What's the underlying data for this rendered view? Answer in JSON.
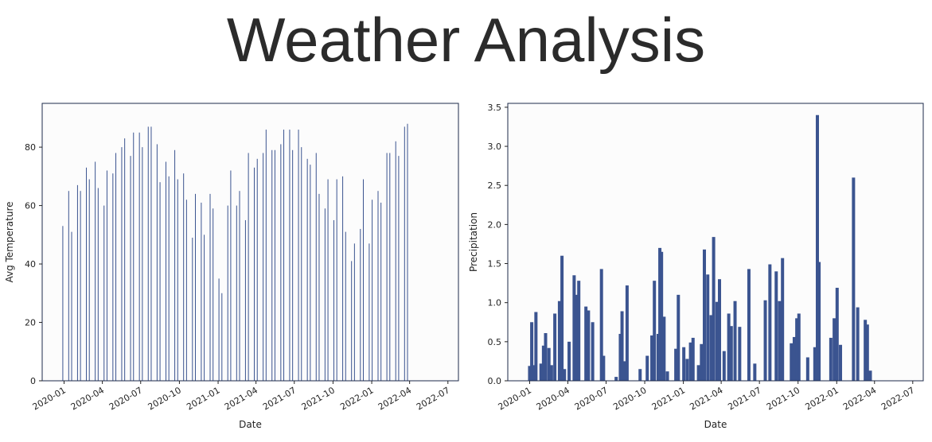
{
  "title": "Weather Analysis",
  "colors": {
    "bar": "#3b5490",
    "frame": "#1d2a4a",
    "plot_bg": "#fcfcfc"
  },
  "chart_data": [
    {
      "type": "bar",
      "xlabel": "Date",
      "ylabel": "Avg Temperature",
      "ylim": [
        0,
        95
      ],
      "xlim": [
        "2019-11-10",
        "2022-07-26"
      ],
      "yticks": [
        0,
        20,
        40,
        60,
        80
      ],
      "xticks": [
        "2020-01",
        "2020-04",
        "2020-07",
        "2020-10",
        "2021-01",
        "2021-04",
        "2021-07",
        "2021-10",
        "2022-01",
        "2022-04",
        "2022-07"
      ],
      "grid": false,
      "bars": [
        {
          "x": "2019-12-29",
          "y": 53
        },
        {
          "x": "2020-01-12",
          "y": 65
        },
        {
          "x": "2020-01-19",
          "y": 51
        },
        {
          "x": "2020-02-02",
          "y": 67
        },
        {
          "x": "2020-02-09",
          "y": 65
        },
        {
          "x": "2020-02-23",
          "y": 73
        },
        {
          "x": "2020-03-01",
          "y": 69
        },
        {
          "x": "2020-03-15",
          "y": 75
        },
        {
          "x": "2020-03-22",
          "y": 66
        },
        {
          "x": "2020-04-05",
          "y": 60
        },
        {
          "x": "2020-04-12",
          "y": 72
        },
        {
          "x": "2020-04-26",
          "y": 71
        },
        {
          "x": "2020-05-03",
          "y": 78
        },
        {
          "x": "2020-05-17",
          "y": 80
        },
        {
          "x": "2020-05-24",
          "y": 83
        },
        {
          "x": "2020-06-07",
          "y": 77
        },
        {
          "x": "2020-06-14",
          "y": 85
        },
        {
          "x": "2020-06-28",
          "y": 85
        },
        {
          "x": "2020-07-05",
          "y": 80
        },
        {
          "x": "2020-07-19",
          "y": 87
        },
        {
          "x": "2020-07-26",
          "y": 87
        },
        {
          "x": "2020-08-09",
          "y": 81
        },
        {
          "x": "2020-08-16",
          "y": 68
        },
        {
          "x": "2020-08-30",
          "y": 75
        },
        {
          "x": "2020-09-06",
          "y": 70
        },
        {
          "x": "2020-09-20",
          "y": 79
        },
        {
          "x": "2020-09-27",
          "y": 69
        },
        {
          "x": "2020-10-11",
          "y": 71
        },
        {
          "x": "2020-10-18",
          "y": 62
        },
        {
          "x": "2020-11-01",
          "y": 49
        },
        {
          "x": "2020-11-08",
          "y": 64
        },
        {
          "x": "2020-11-22",
          "y": 61
        },
        {
          "x": "2020-11-29",
          "y": 50
        },
        {
          "x": "2020-12-13",
          "y": 64
        },
        {
          "x": "2020-12-20",
          "y": 59
        },
        {
          "x": "2021-01-03",
          "y": 35
        },
        {
          "x": "2021-01-10",
          "y": 30
        },
        {
          "x": "2021-01-24",
          "y": 60
        },
        {
          "x": "2021-01-31",
          "y": 72
        },
        {
          "x": "2021-02-14",
          "y": 60
        },
        {
          "x": "2021-02-21",
          "y": 65
        },
        {
          "x": "2021-03-07",
          "y": 55
        },
        {
          "x": "2021-03-14",
          "y": 78
        },
        {
          "x": "2021-03-28",
          "y": 73
        },
        {
          "x": "2021-04-04",
          "y": 76
        },
        {
          "x": "2021-04-18",
          "y": 78
        },
        {
          "x": "2021-04-25",
          "y": 86
        },
        {
          "x": "2021-05-09",
          "y": 79
        },
        {
          "x": "2021-05-16",
          "y": 79
        },
        {
          "x": "2021-05-30",
          "y": 81
        },
        {
          "x": "2021-06-06",
          "y": 86
        },
        {
          "x": "2021-06-20",
          "y": 86
        },
        {
          "x": "2021-06-27",
          "y": 79
        },
        {
          "x": "2021-07-11",
          "y": 86
        },
        {
          "x": "2021-07-18",
          "y": 80
        },
        {
          "x": "2021-08-01",
          "y": 76
        },
        {
          "x": "2021-08-08",
          "y": 74
        },
        {
          "x": "2021-08-22",
          "y": 78
        },
        {
          "x": "2021-08-29",
          "y": 64
        },
        {
          "x": "2021-09-12",
          "y": 59
        },
        {
          "x": "2021-09-19",
          "y": 69
        },
        {
          "x": "2021-10-03",
          "y": 55
        },
        {
          "x": "2021-10-10",
          "y": 69
        },
        {
          "x": "2021-10-24",
          "y": 70
        },
        {
          "x": "2021-10-31",
          "y": 51
        },
        {
          "x": "2021-11-14",
          "y": 41
        },
        {
          "x": "2021-11-21",
          "y": 47
        },
        {
          "x": "2021-12-05",
          "y": 52
        },
        {
          "x": "2021-12-12",
          "y": 69
        },
        {
          "x": "2021-12-26",
          "y": 47
        },
        {
          "x": "2022-01-02",
          "y": 62
        },
        {
          "x": "2022-01-16",
          "y": 65
        },
        {
          "x": "2022-01-23",
          "y": 61
        },
        {
          "x": "2022-02-06",
          "y": 78
        },
        {
          "x": "2022-02-13",
          "y": 78
        },
        {
          "x": "2022-02-27",
          "y": 82
        },
        {
          "x": "2022-03-06",
          "y": 77
        },
        {
          "x": "2022-03-20",
          "y": 87
        },
        {
          "x": "2022-03-27",
          "y": 88
        }
      ]
    },
    {
      "type": "bar",
      "xlabel": "Date",
      "ylabel": "Precipitation",
      "ylim": [
        0,
        3.55
      ],
      "xlim": [
        "2019-11-10",
        "2022-07-26"
      ],
      "yticks": [
        0.0,
        0.5,
        1.0,
        1.5,
        2.0,
        2.5,
        3.0,
        3.5
      ],
      "xticks": [
        "2020-01",
        "2020-04",
        "2020-07",
        "2020-10",
        "2021-01",
        "2021-04",
        "2021-07",
        "2021-10",
        "2022-01",
        "2022-04",
        "2022-07"
      ],
      "grid": false,
      "bars": [
        {
          "x": "2020-01-01",
          "y": 0.19
        },
        {
          "x": "2020-01-06",
          "y": 0.75
        },
        {
          "x": "2020-01-10",
          "y": 0.2
        },
        {
          "x": "2020-01-16",
          "y": 0.88
        },
        {
          "x": "2020-01-28",
          "y": 0.22
        },
        {
          "x": "2020-02-03",
          "y": 0.45
        },
        {
          "x": "2020-02-08",
          "y": 0.61
        },
        {
          "x": "2020-02-16",
          "y": 0.42
        },
        {
          "x": "2020-02-22",
          "y": 0.2
        },
        {
          "x": "2020-03-01",
          "y": 0.86
        },
        {
          "x": "2020-03-12",
          "y": 1.02
        },
        {
          "x": "2020-03-18",
          "y": 1.6
        },
        {
          "x": "2020-03-24",
          "y": 0.15
        },
        {
          "x": "2020-04-04",
          "y": 0.5
        },
        {
          "x": "2020-04-16",
          "y": 1.35
        },
        {
          "x": "2020-04-21",
          "y": 1.1
        },
        {
          "x": "2020-04-27",
          "y": 1.28
        },
        {
          "x": "2020-05-14",
          "y": 0.95
        },
        {
          "x": "2020-05-20",
          "y": 0.9
        },
        {
          "x": "2020-05-30",
          "y": 0.75
        },
        {
          "x": "2020-06-20",
          "y": 1.43
        },
        {
          "x": "2020-06-25",
          "y": 0.32
        },
        {
          "x": "2020-07-25",
          "y": 0.05
        },
        {
          "x": "2020-08-04",
          "y": 0.6
        },
        {
          "x": "2020-08-08",
          "y": 0.89
        },
        {
          "x": "2020-08-14",
          "y": 0.25
        },
        {
          "x": "2020-08-20",
          "y": 1.22
        },
        {
          "x": "2020-09-20",
          "y": 0.15
        },
        {
          "x": "2020-10-07",
          "y": 0.32
        },
        {
          "x": "2020-10-18",
          "y": 0.58
        },
        {
          "x": "2020-10-24",
          "y": 1.28
        },
        {
          "x": "2020-11-02",
          "y": 0.6
        },
        {
          "x": "2020-11-06",
          "y": 1.7
        },
        {
          "x": "2020-11-10",
          "y": 1.65
        },
        {
          "x": "2020-11-16",
          "y": 0.82
        },
        {
          "x": "2020-11-24",
          "y": 0.12
        },
        {
          "x": "2020-12-14",
          "y": 0.41
        },
        {
          "x": "2020-12-20",
          "y": 1.1
        },
        {
          "x": "2021-01-02",
          "y": 0.43
        },
        {
          "x": "2021-01-10",
          "y": 0.28
        },
        {
          "x": "2021-01-18",
          "y": 0.49
        },
        {
          "x": "2021-01-24",
          "y": 0.55
        },
        {
          "x": "2021-02-06",
          "y": 0.2
        },
        {
          "x": "2021-02-13",
          "y": 0.47
        },
        {
          "x": "2021-02-20",
          "y": 1.68
        },
        {
          "x": "2021-02-28",
          "y": 1.36
        },
        {
          "x": "2021-03-08",
          "y": 0.84
        },
        {
          "x": "2021-03-14",
          "y": 1.84
        },
        {
          "x": "2021-03-22",
          "y": 1.01
        },
        {
          "x": "2021-03-28",
          "y": 1.3
        },
        {
          "x": "2021-04-08",
          "y": 0.38
        },
        {
          "x": "2021-04-19",
          "y": 0.86
        },
        {
          "x": "2021-04-25",
          "y": 0.7
        },
        {
          "x": "2021-05-04",
          "y": 1.02
        },
        {
          "x": "2021-05-15",
          "y": 0.69
        },
        {
          "x": "2021-06-06",
          "y": 1.43
        },
        {
          "x": "2021-06-20",
          "y": 0.22
        },
        {
          "x": "2021-07-15",
          "y": 1.03
        },
        {
          "x": "2021-07-26",
          "y": 1.49
        },
        {
          "x": "2021-08-10",
          "y": 1.4
        },
        {
          "x": "2021-08-18",
          "y": 1.02
        },
        {
          "x": "2021-08-25",
          "y": 1.57
        },
        {
          "x": "2021-09-15",
          "y": 0.48
        },
        {
          "x": "2021-09-22",
          "y": 0.56
        },
        {
          "x": "2021-09-28",
          "y": 0.8
        },
        {
          "x": "2021-10-03",
          "y": 0.86
        },
        {
          "x": "2021-10-24",
          "y": 0.3
        },
        {
          "x": "2021-11-10",
          "y": 0.43
        },
        {
          "x": "2021-11-16",
          "y": 3.4
        },
        {
          "x": "2021-11-20",
          "y": 1.52
        },
        {
          "x": "2021-12-18",
          "y": 0.55
        },
        {
          "x": "2021-12-26",
          "y": 0.8
        },
        {
          "x": "2022-01-02",
          "y": 1.19
        },
        {
          "x": "2022-01-10",
          "y": 0.46
        },
        {
          "x": "2022-02-10",
          "y": 2.6
        },
        {
          "x": "2022-02-20",
          "y": 0.94
        },
        {
          "x": "2022-03-10",
          "y": 0.78
        },
        {
          "x": "2022-03-15",
          "y": 0.72
        },
        {
          "x": "2022-03-22",
          "y": 0.13
        }
      ]
    }
  ]
}
